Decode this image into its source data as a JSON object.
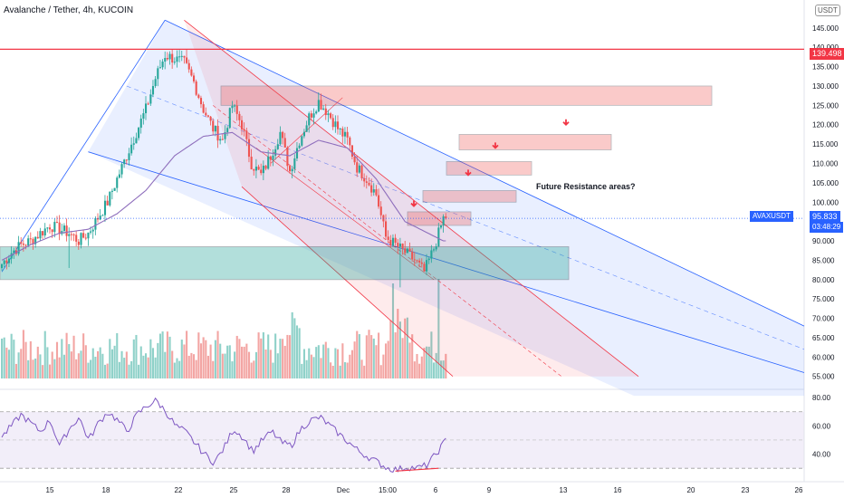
{
  "header": {
    "title": "Avalanche / Tether, 4h, KUCOIN",
    "currency": "USDT"
  },
  "annotation": "Future Resistance areas?",
  "tags": {
    "resistance_price": "139.498",
    "symbol": "AVAXUSDT",
    "last_price": "95.833",
    "countdown": "03:48:29"
  },
  "colors": {
    "up": "#26a69a",
    "down": "#ef5350",
    "vol_up": "#8fd1c9",
    "vol_down": "#f3a5a3",
    "ma": "#8e6ebc",
    "rsi": "#7e57c2",
    "blue_channel": "#2962ff",
    "red_channel": "#f23645",
    "support_zone": "#26a69a",
    "resistance_zone": "#ef5350",
    "resistance_line": "#f23645",
    "rsi_band": "#ede7f6",
    "tag_blue": "#2962ff",
    "tag_red": "#f23645"
  },
  "chart_data": [
    {
      "type": "candlestick",
      "y_axis_ticks": [
        55,
        60,
        65,
        70,
        75,
        80,
        85,
        90,
        95,
        100,
        105,
        110,
        115,
        120,
        125,
        130,
        135,
        140,
        145
      ],
      "x_axis_ticks": [
        "15",
        "18",
        "22",
        "25",
        "28",
        "Dec",
        "15:00",
        "6",
        "9",
        "13",
        "16",
        "20",
        "23",
        "26"
      ],
      "ylim": [
        54,
        148
      ],
      "price_series": {
        "x": [
          0,
          4,
          8,
          12,
          16,
          20,
          24,
          28,
          32,
          36,
          40,
          44,
          48,
          52,
          56,
          60,
          64,
          68,
          72,
          76,
          80,
          84,
          88,
          92,
          96,
          100,
          104,
          108,
          112,
          116,
          120,
          124,
          128,
          132,
          136,
          140,
          144,
          148,
          152,
          156,
          160,
          164,
          168,
          172,
          176,
          180,
          184
        ],
        "close": [
          84,
          87,
          89,
          90,
          92,
          94,
          93,
          92,
          90,
          92,
          96,
          100,
          106,
          112,
          118,
          124,
          132,
          138,
          137,
          136,
          131,
          124,
          119,
          116,
          125,
          120,
          110,
          107,
          112,
          118,
          108,
          116,
          122,
          126,
          123,
          119,
          116,
          109,
          106,
          102,
          91,
          89,
          87,
          85,
          82,
          88,
          95.833
        ]
      },
      "moving_average": {
        "x": [
          0,
          12,
          24,
          36,
          48,
          60,
          72,
          84,
          96,
          108,
          120,
          132,
          144,
          156,
          168,
          184
        ],
        "values": [
          85,
          89,
          92,
          93,
          97,
          103,
          112,
          117,
          118,
          113,
          112,
          116,
          114,
          106,
          95,
          90
        ]
      },
      "resistance_level": 139.498,
      "last_price": 95.833,
      "support_zone": [
        80,
        88.5
      ],
      "resistance_zones": [
        [
          125,
          130
        ],
        [
          113.5,
          117.5
        ],
        [
          107,
          110.5
        ],
        [
          100,
          103
        ],
        [
          94,
          97.5
        ]
      ]
    },
    {
      "type": "bar",
      "name": "Volume"
    },
    {
      "type": "line",
      "name": "RSI",
      "y_axis_ticks": [
        40,
        60,
        80
      ],
      "ylim": [
        25,
        82
      ],
      "bands": [
        30,
        70
      ],
      "midline": 50,
      "values": [
        52,
        60,
        68,
        62,
        56,
        64,
        46,
        58,
        66,
        50,
        62,
        70,
        64,
        56,
        68,
        74,
        78,
        70,
        60,
        56,
        48,
        40,
        34,
        44,
        58,
        52,
        42,
        50,
        56,
        48,
        46,
        58,
        64,
        66,
        60,
        54,
        48,
        42,
        38,
        34,
        30,
        29,
        31,
        30,
        32,
        40,
        50
      ]
    }
  ]
}
